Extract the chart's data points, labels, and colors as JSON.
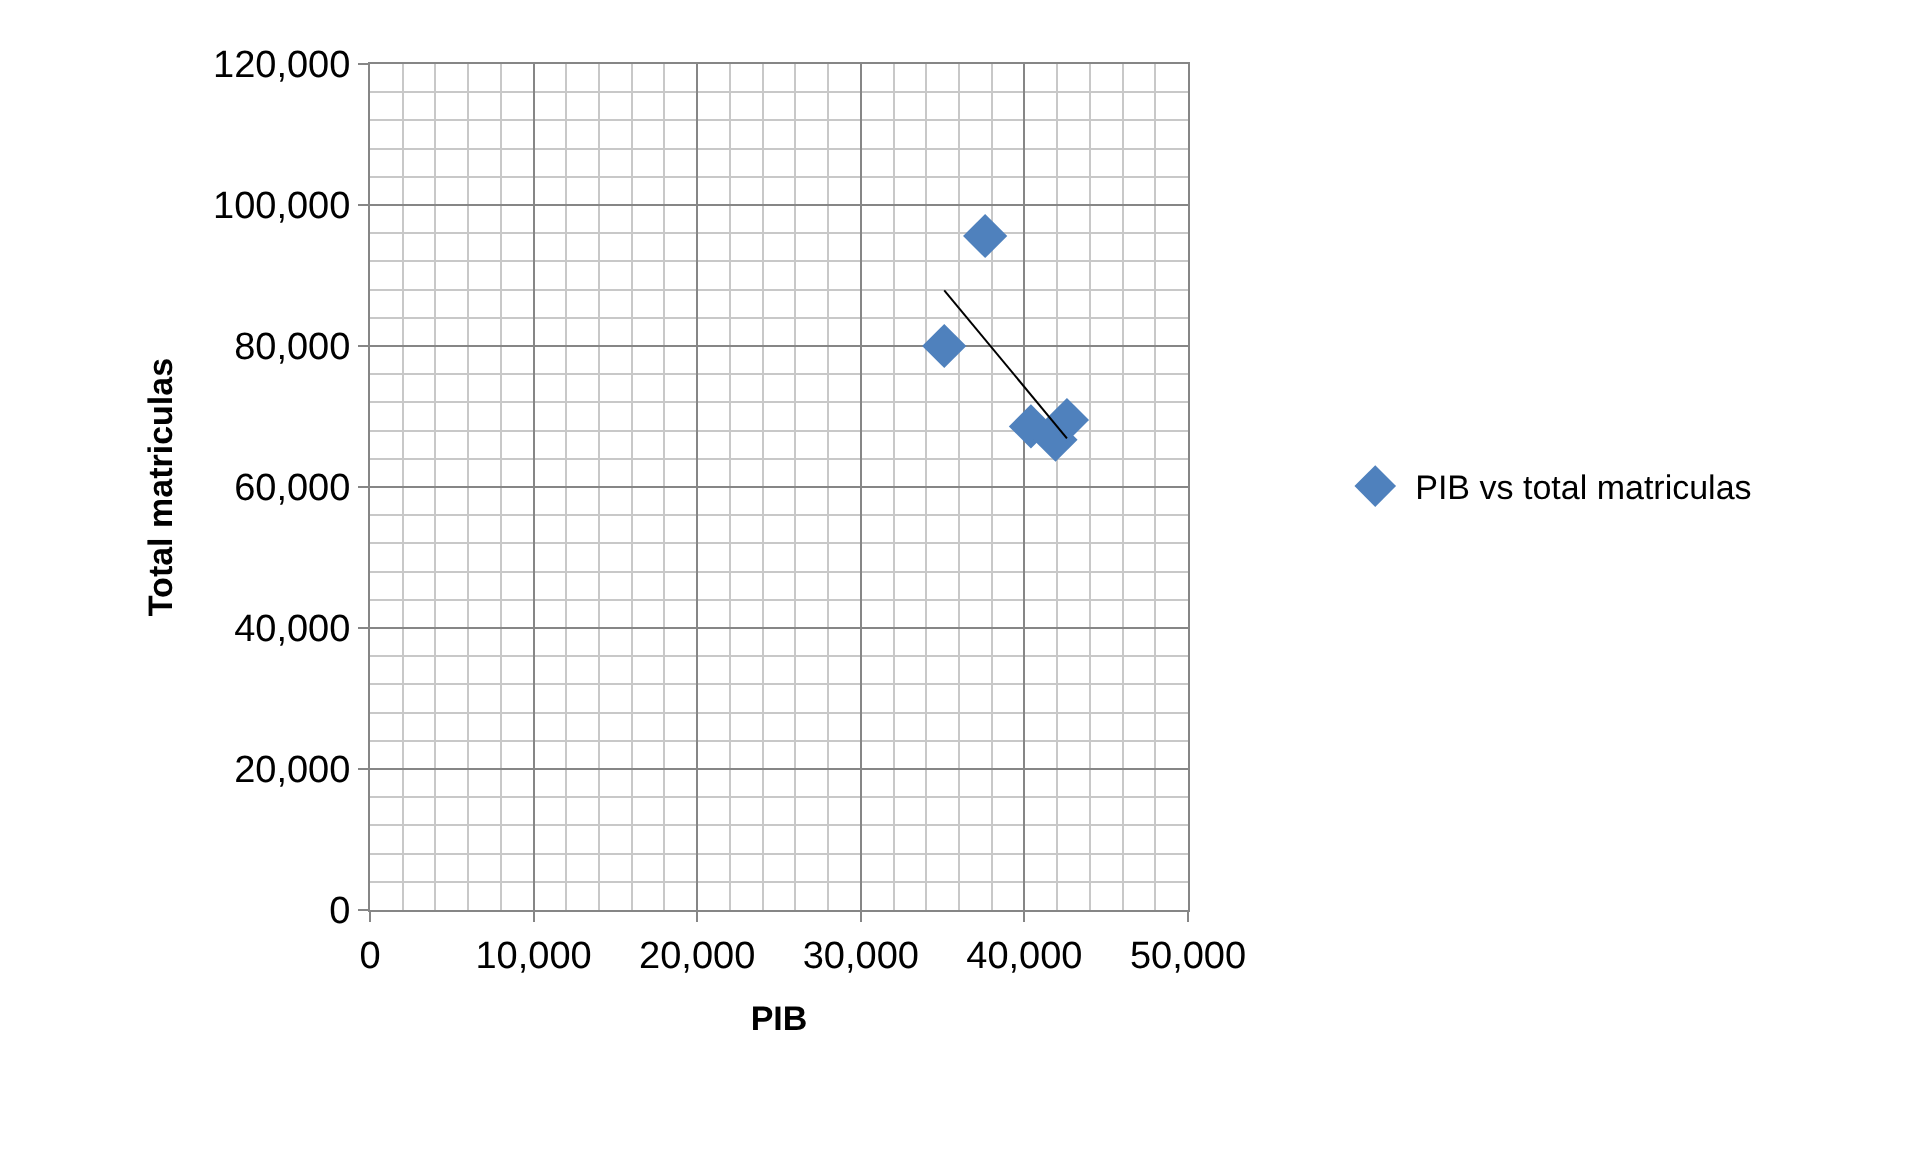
{
  "chart_data": {
    "type": "scatter",
    "xlabel": "PIB",
    "ylabel": "Total matriculas",
    "series": [
      {
        "name": "PIB vs total matriculas",
        "color": "#4f81bd",
        "x": [
          35100,
          37600,
          40400,
          41900,
          42600
        ],
        "values": [
          80000,
          95600,
          68600,
          66700,
          69500
        ],
        "marker": "diamond"
      },
      {
        "type": "line",
        "color": "#000000",
        "x": [
          35100,
          42600
        ],
        "values": [
          87900,
          66900
        ]
      }
    ],
    "xlim": [
      0,
      50000
    ],
    "xticks": [
      {
        "value": 0,
        "label": "0"
      },
      {
        "value": 10000,
        "label": "10,000"
      },
      {
        "value": 20000,
        "label": "20,000"
      },
      {
        "value": 30000,
        "label": "30,000"
      },
      {
        "value": 40000,
        "label": "40,000"
      },
      {
        "value": 50000,
        "label": "50,000"
      }
    ],
    "ylim": [
      0,
      120000
    ],
    "yticks": [
      {
        "value": 0,
        "label": "0"
      },
      {
        "value": 20000,
        "label": "20,000"
      },
      {
        "value": 40000,
        "label": "40,000"
      },
      {
        "value": 60000,
        "label": "60,000"
      },
      {
        "value": 80000,
        "label": "80,000"
      },
      {
        "value": 100000,
        "label": "100,000"
      },
      {
        "value": 120000,
        "label": "120,000"
      }
    ],
    "grid": true,
    "legend": "right"
  }
}
